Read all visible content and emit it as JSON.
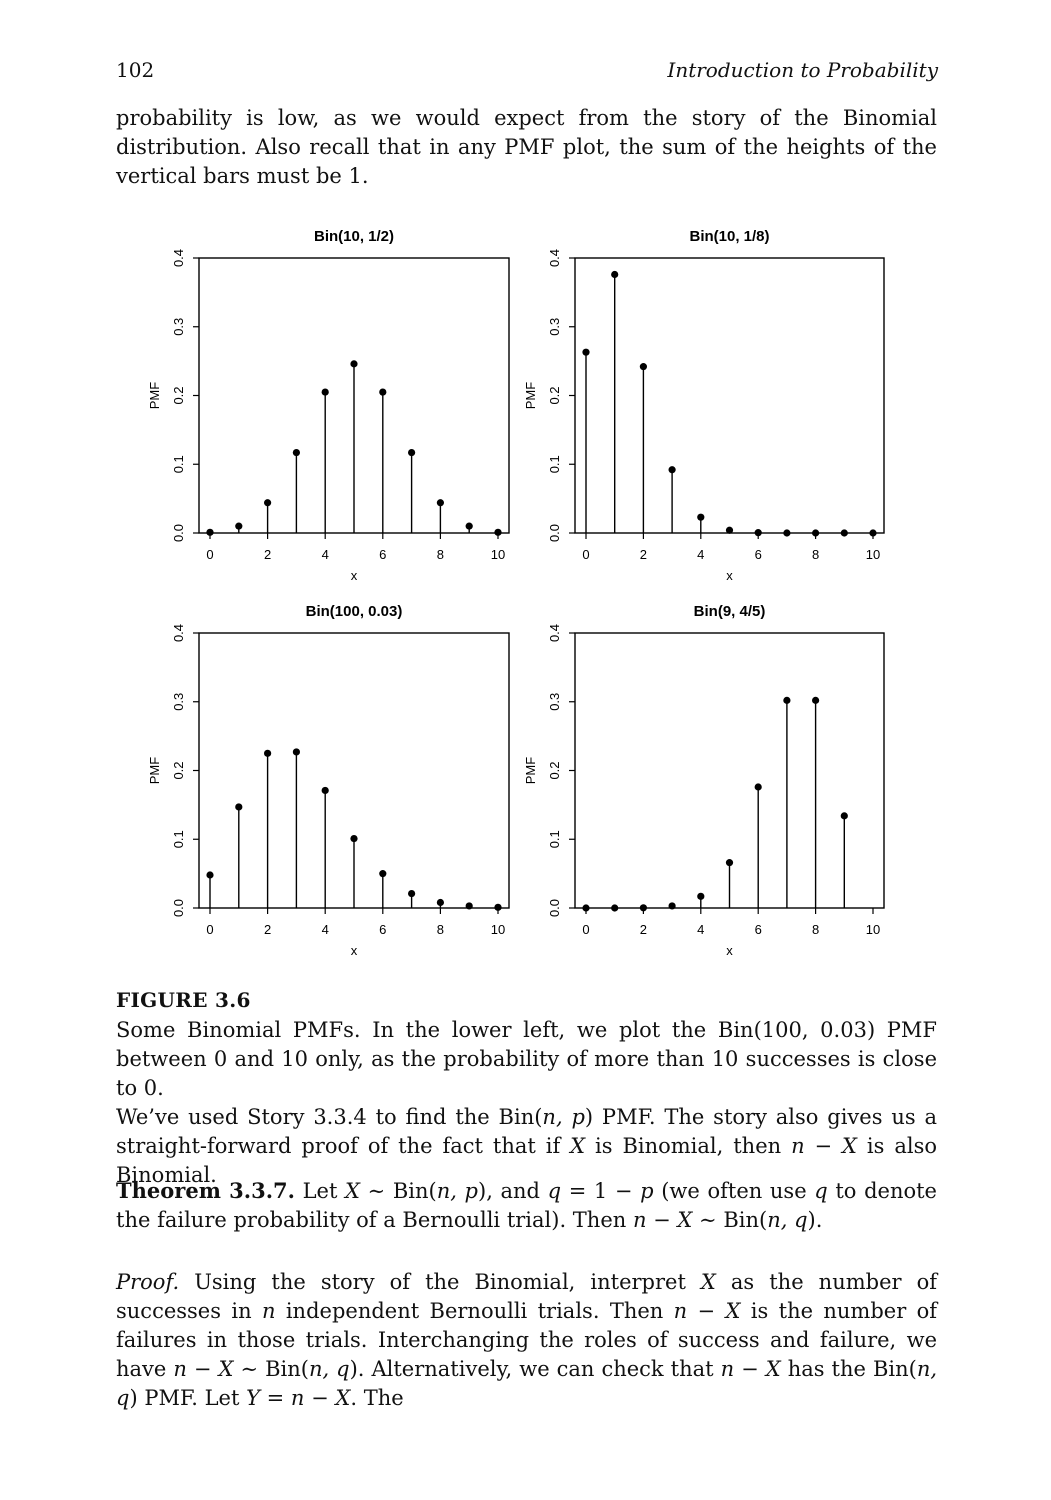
{
  "header": {
    "page_number": "102",
    "running_head": "Introduction to Probability"
  },
  "intro_paragraph": "probability is low, as we would expect from the story of the Binomial distribution. Also recall that in any PMF plot, the sum of the heights of the vertical bars must be 1.",
  "figure": {
    "label": "FIGURE 3.6",
    "caption": "Some Binomial PMFs. In the lower left, we plot the Bin(100, 0.03) PMF between 0 and 10 only, as the probability of more than 10 successes is close to 0."
  },
  "chart_data": [
    {
      "type": "stem",
      "title": "Bin(10, 1/2)",
      "xlabel": "x",
      "ylabel": "PMF",
      "xlim": [
        0,
        10
      ],
      "ylim": [
        0,
        0.4
      ],
      "xticks": [
        "0",
        "2",
        "4",
        "6",
        "8",
        "10"
      ],
      "yticks": [
        "0.0",
        "0.1",
        "0.2",
        "0.3",
        "0.4"
      ],
      "x": [
        0,
        1,
        2,
        3,
        4,
        5,
        6,
        7,
        8,
        9,
        10
      ],
      "values": [
        0.001,
        0.01,
        0.044,
        0.117,
        0.205,
        0.246,
        0.205,
        0.117,
        0.044,
        0.01,
        0.001
      ]
    },
    {
      "type": "stem",
      "title": "Bin(10, 1/8)",
      "xlabel": "x",
      "ylabel": "PMF",
      "xlim": [
        0,
        10
      ],
      "ylim": [
        0,
        0.4
      ],
      "xticks": [
        "0",
        "2",
        "4",
        "6",
        "8",
        "10"
      ],
      "yticks": [
        "0.0",
        "0.1",
        "0.2",
        "0.3",
        "0.4"
      ],
      "x": [
        0,
        1,
        2,
        3,
        4,
        5,
        6,
        7,
        8,
        9,
        10
      ],
      "values": [
        0.263,
        0.376,
        0.242,
        0.092,
        0.023,
        0.004,
        0.0005,
        0.0,
        0.0,
        0.0,
        0.0
      ]
    },
    {
      "type": "stem",
      "title": "Bin(100, 0.03)",
      "xlabel": "x",
      "ylabel": "PMF",
      "xlim": [
        0,
        10
      ],
      "ylim": [
        0,
        0.4
      ],
      "xticks": [
        "0",
        "2",
        "4",
        "6",
        "8",
        "10"
      ],
      "yticks": [
        "0.0",
        "0.1",
        "0.2",
        "0.3",
        "0.4"
      ],
      "x": [
        0,
        1,
        2,
        3,
        4,
        5,
        6,
        7,
        8,
        9,
        10
      ],
      "values": [
        0.048,
        0.147,
        0.225,
        0.227,
        0.171,
        0.101,
        0.05,
        0.021,
        0.008,
        0.003,
        0.001
      ]
    },
    {
      "type": "stem",
      "title": "Bin(9, 4/5)",
      "xlabel": "x",
      "ylabel": "PMF",
      "xlim": [
        0,
        10
      ],
      "ylim": [
        0,
        0.4
      ],
      "xticks": [
        "0",
        "2",
        "4",
        "6",
        "8",
        "10"
      ],
      "yticks": [
        "0.0",
        "0.1",
        "0.2",
        "0.3",
        "0.4"
      ],
      "x": [
        0,
        1,
        2,
        3,
        4,
        5,
        6,
        7,
        8,
        9
      ],
      "values": [
        0.0,
        0.0,
        0.0003,
        0.003,
        0.017,
        0.066,
        0.176,
        0.302,
        0.302,
        0.134
      ]
    }
  ],
  "body_text": {
    "p2_a": "We’ve used Story 3.3.4 to find the Bin(",
    "p2_b": ") PMF. The story also gives us a straight-forward proof of the fact that if ",
    "p2_c": " is Binomial, then ",
    "p2_d": " is also Binomial.",
    "theorem_label": "Theorem 3.3.7.",
    "theorem_a": " Let ",
    "theorem_b": " ∼ Bin(",
    "theorem_c": "), and ",
    "theorem_d": " = 1 − ",
    "theorem_e": " (we often use ",
    "theorem_f": " to denote the failure probability of a Bernoulli trial). Then ",
    "theorem_g": " ∼ Bin(",
    "theorem_h": ").",
    "proof_label": "Proof.",
    "proof_a": " Using the story of the Binomial, interpret ",
    "proof_b": " as the number of successes in ",
    "proof_c": " independent Bernoulli trials. Then ",
    "proof_d": " is the number of failures in those trials. Interchanging the roles of success and failure, we have ",
    "proof_e": " ∼ Bin(",
    "proof_f": "). Alternatively, we can check that ",
    "proof_g": " has the Bin(",
    "proof_h": ") PMF. Let ",
    "proof_i": " = ",
    "proof_j": ". The"
  },
  "math": {
    "n_p": "n, p",
    "n_q": "n, q",
    "X": "X",
    "n_minus_X": "n − X",
    "q": "q",
    "p": "p",
    "n": "n",
    "Y": "Y"
  }
}
